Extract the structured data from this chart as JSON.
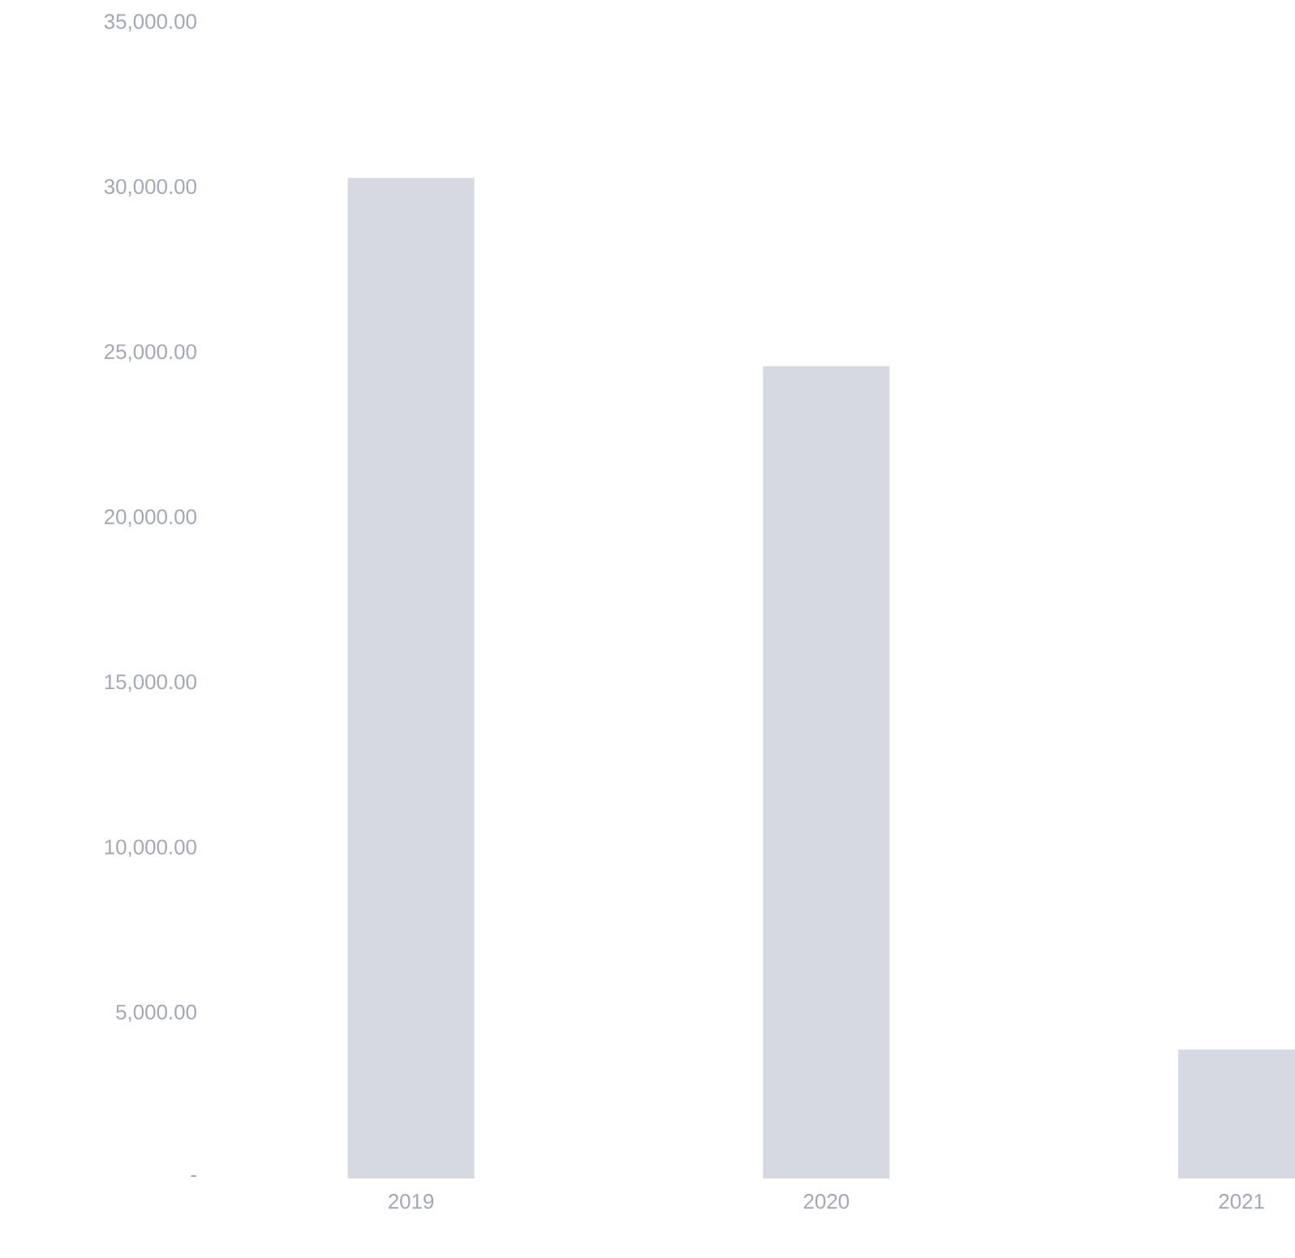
{
  "chart_data": {
    "type": "bar",
    "categories": [
      "2019",
      "2020",
      "2021"
    ],
    "values": [
      30300,
      24600,
      3900
    ],
    "color": "#d6d8e2",
    "ylim": [
      0,
      35000
    ],
    "yticks": [
      {
        "value": 0,
        "label": "-"
      },
      {
        "value": 5000,
        "label": "5,000.00"
      },
      {
        "value": 10000,
        "label": "10,000.00"
      },
      {
        "value": 15000,
        "label": "15,000.00"
      },
      {
        "value": 20000,
        "label": "20,000.00"
      },
      {
        "value": 25000,
        "label": "25,000.00"
      },
      {
        "value": 30000,
        "label": "30,000.00"
      },
      {
        "value": 35000,
        "label": "35,000.00"
      }
    ]
  }
}
